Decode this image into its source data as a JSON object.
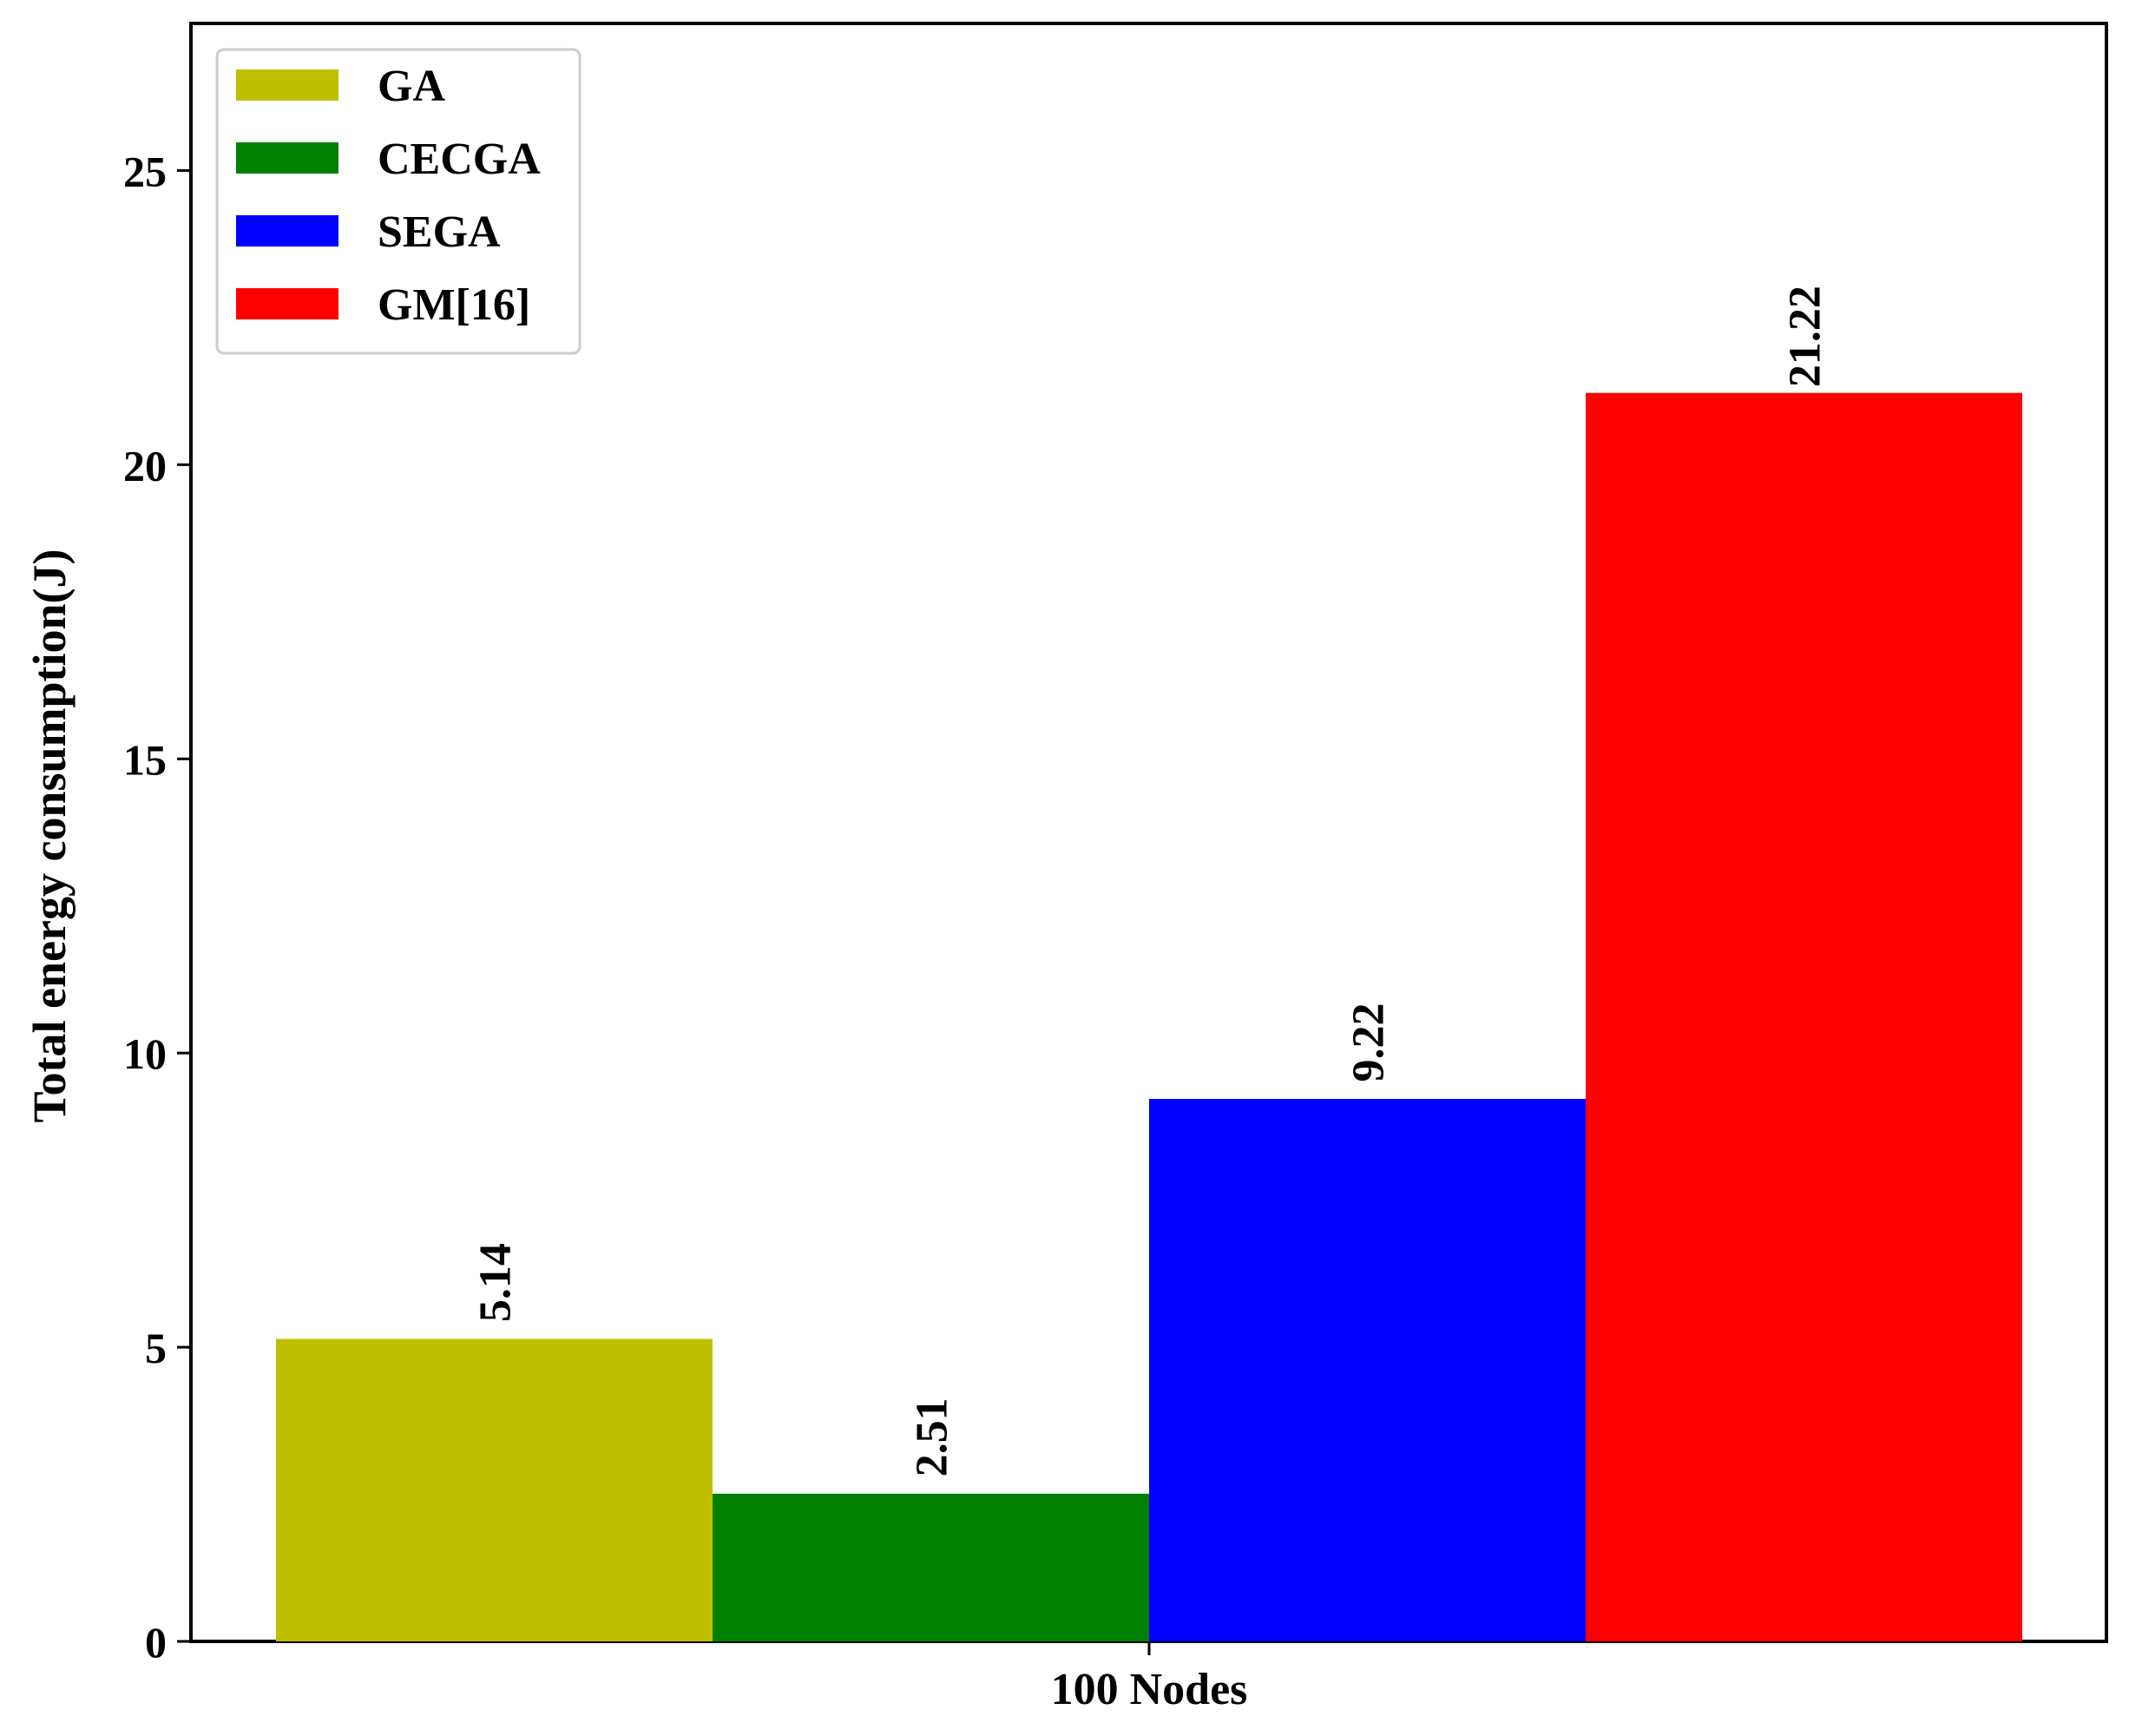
{
  "chart_data": {
    "type": "bar",
    "title": "",
    "xlabel": "",
    "ylabel": "Total energy consumption(J)",
    "categories": [
      "100 Nodes"
    ],
    "series": [
      {
        "name": "GA",
        "values": [
          5.14
        ],
        "color": "#bfbf00"
      },
      {
        "name": "CECGA",
        "values": [
          2.51
        ],
        "color": "#008000"
      },
      {
        "name": "SEGA",
        "values": [
          9.22
        ],
        "color": "#0000ff"
      },
      {
        "name": "GM[16]",
        "values": [
          21.22
        ],
        "color": "#ff0000"
      }
    ],
    "data_labels": [
      "5.14",
      "2.51",
      "9.22",
      "21.22"
    ],
    "ylim": [
      0,
      27.5
    ],
    "yticks": [
      0,
      5,
      10,
      15,
      20,
      25
    ],
    "ytick_labels": [
      "0",
      "5",
      "10",
      "15",
      "20",
      "25"
    ],
    "grid": false,
    "legend_position": "top-left"
  }
}
